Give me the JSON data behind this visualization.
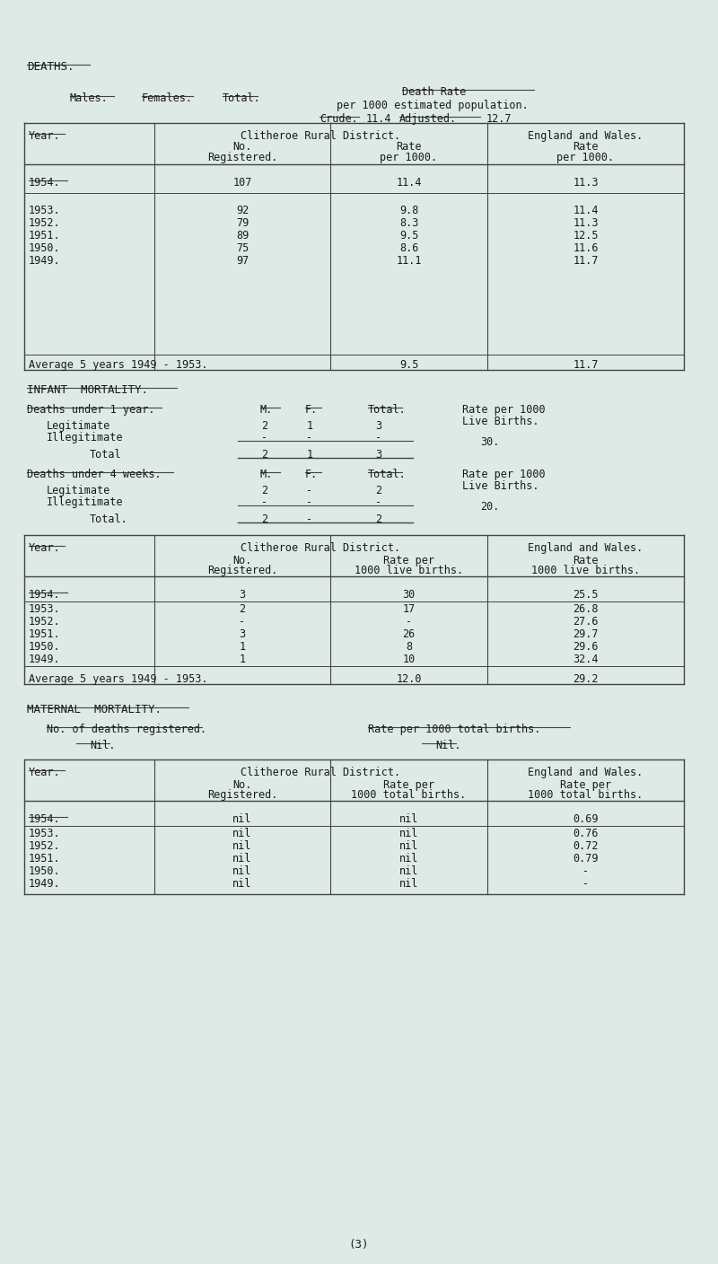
{
  "bg_color": "#ddeae6",
  "text_color": "#1a1a1a",
  "section1_title": "DEATHS.",
  "header_cols": [
    "Males.",
    "Females.",
    "Total."
  ],
  "death_rate_header": "Death Rate",
  "death_rate_sub": "per 1000 estimated population.",
  "crude_label": "Crude.",
  "crude_val": "11.4",
  "adjusted_label": "Adjusted.",
  "adjusted_val": "12.7",
  "table1_data": [
    [
      "1954.",
      "107",
      "11.4",
      "11.3"
    ],
    [
      "1953.",
      "92",
      "9.8",
      "11.4"
    ],
    [
      "1952.",
      "79",
      "8.3",
      "11.3"
    ],
    [
      "1951.",
      "89",
      "9.5",
      "12.5"
    ],
    [
      "1950.",
      "75",
      "8.6",
      "11.6"
    ],
    [
      "1949.",
      "97",
      "11.1",
      "11.7"
    ]
  ],
  "table1_avg": [
    "Average 5 years 1949 - 1953.",
    "9.5",
    "11.7"
  ],
  "section2_title": "INFANT  MORTALITY.",
  "deaths_u1_label": "Deaths under 1 year.",
  "mf_headers": [
    "M.",
    "F.",
    "Total."
  ],
  "legit_label": "Legitimate",
  "legit_u1": [
    "2",
    "1",
    "3"
  ],
  "illegit_label": "Illegitimate",
  "illegit_u1": [
    "-",
    "-",
    "-"
  ],
  "total_u1_label": "Total",
  "total_u1": [
    "2",
    "1",
    "3"
  ],
  "rate_u1": "30.",
  "deaths_u4_label": "Deaths under 4 weeks.",
  "legit_u4": [
    "2",
    "-",
    "2"
  ],
  "illegit_u4": [
    "-",
    "-",
    "-"
  ],
  "total_u4_label": "Total.",
  "total_u4": [
    "2",
    "-",
    "2"
  ],
  "rate_u4": "20.",
  "table2_data": [
    [
      "1954.",
      "3",
      "30",
      "25.5"
    ],
    [
      "1953.",
      "2",
      "17",
      "26.8"
    ],
    [
      "1952.",
      "-",
      "-",
      "27.6"
    ],
    [
      "1951.",
      "3",
      "26",
      "29.7"
    ],
    [
      "1950.",
      "1",
      "8",
      "29.6"
    ],
    [
      "1949.",
      "1",
      "10",
      "32.4"
    ]
  ],
  "table2_avg": [
    "Average 5 years 1949 - 1953.",
    "12.0",
    "29.2"
  ],
  "section3_title": "MATERNAL  MORTALITY.",
  "mat_no_label": "No. of deaths registered.",
  "mat_nil1": "Nil.",
  "mat_rate_label": "Rate per 1000 total births.",
  "mat_nil2": "Nil.",
  "table3_data": [
    [
      "1954.",
      "nil",
      "nil",
      "0.69"
    ],
    [
      "1953.",
      "nil",
      "nil",
      "0.76"
    ],
    [
      "1952.",
      "nil",
      "nil",
      "0.72"
    ],
    [
      "1951.",
      "nil",
      "nil",
      "0.79"
    ],
    [
      "1950.",
      "nil",
      "nil",
      "-"
    ],
    [
      "1949.",
      "nil",
      "nil",
      "-"
    ]
  ],
  "page_num": "(3)"
}
